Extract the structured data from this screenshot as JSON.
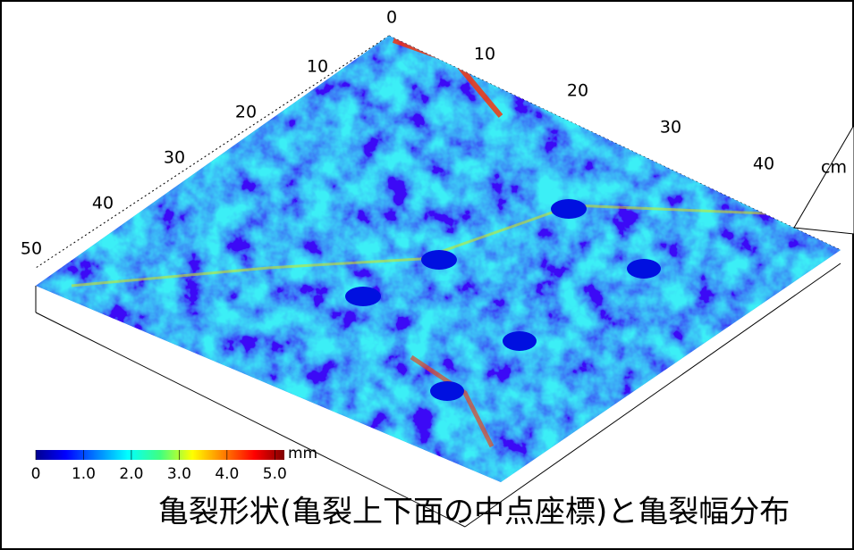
{
  "figure": {
    "caption": "亀裂形状(亀裂上下面の中点座標)と亀裂幅分布",
    "axis_right": {
      "ticks": [
        0,
        10,
        20,
        30,
        40
      ],
      "unit": "cm"
    },
    "axis_left": {
      "ticks": [
        10,
        20,
        30,
        40,
        50
      ]
    },
    "colorbar": {
      "unit": "mm",
      "lim": [
        0,
        5.2
      ],
      "ticks": [
        0,
        {
          "value": 1,
          "label": "1.0"
        },
        {
          "value": 2,
          "label": "2.0"
        },
        {
          "value": 3,
          "label": "3.0"
        },
        {
          "value": 4,
          "label": "4.0"
        },
        {
          "value": 5,
          "label": "5.0"
        }
      ]
    }
  }
}
